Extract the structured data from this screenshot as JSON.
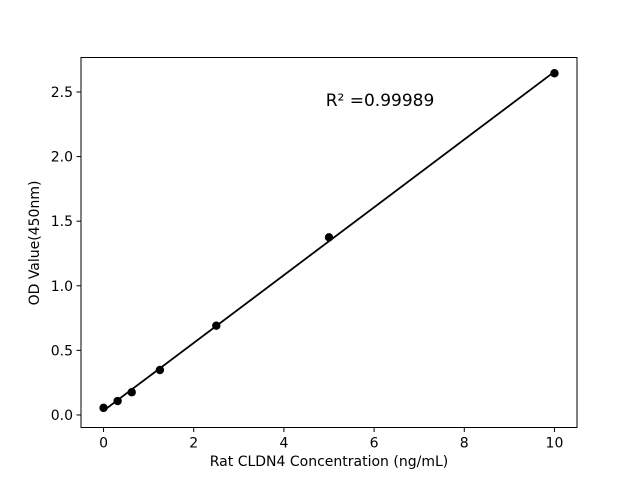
{
  "chart_data": {
    "type": "scatter",
    "title": "",
    "xlabel": "Rat CLDN4 Concentration (ng/mL)",
    "ylabel": "OD Value(450nm)",
    "annotation": {
      "text": "R² =0.99989"
    },
    "fit": {
      "type": "linear",
      "r_squared": "0.99989"
    },
    "points": [
      {
        "x": 0,
        "y": 0.055
      },
      {
        "x": 0.3125,
        "y": 0.108
      },
      {
        "x": 0.625,
        "y": 0.176
      },
      {
        "x": 1.25,
        "y": 0.348
      },
      {
        "x": 2.5,
        "y": 0.691
      },
      {
        "x": 5,
        "y": 1.375
      },
      {
        "x": 10,
        "y": 2.645
      }
    ],
    "axes": {
      "xlim": [
        -0.5,
        10.5
      ],
      "ylim": [
        -0.097,
        2.767
      ],
      "xticks": [
        0,
        2,
        4,
        6,
        8,
        10
      ],
      "xtick_labels": [
        "0",
        "2",
        "4",
        "6",
        "8",
        "10"
      ],
      "yticks": [
        0,
        0.5,
        1.0,
        1.5,
        2.0,
        2.5
      ],
      "ytick_labels": [
        "0.0",
        "0.5",
        "1.0",
        "1.5",
        "2.0",
        "2.5"
      ],
      "grid": false,
      "legend": "none"
    },
    "colors": {
      "marker": "#000000",
      "line": "#000000",
      "spine": "#000000",
      "text": "#000000",
      "background": "#ffffff"
    }
  }
}
